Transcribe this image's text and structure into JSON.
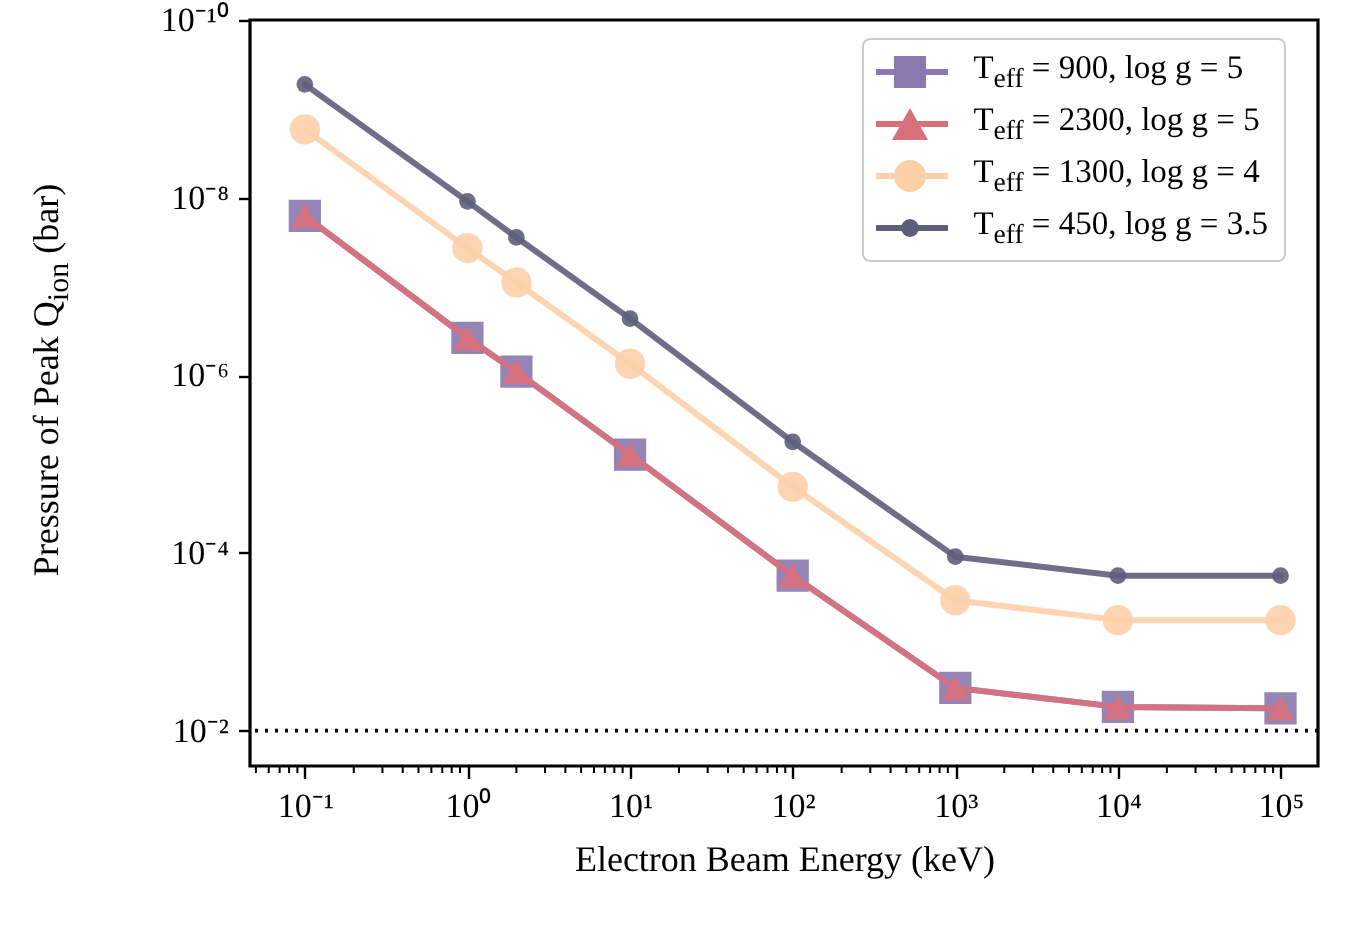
{
  "chart_data": {
    "type": "line",
    "xlabel": "Electron Beam Energy (keV)",
    "ylabel": "Pressure of Peak Q$_{ion}$ (bar)",
    "log": "xy",
    "grid": false,
    "legend": "top right",
    "x": [
      0.1,
      1,
      2,
      10,
      100,
      1000,
      10000,
      100000
    ],
    "xlim": [
      0.046,
      170000
    ],
    "ylim": [
      0.025,
      1e-10
    ],
    "xticks": [
      {
        "value": 0.1,
        "label": "10⁻¹"
      },
      {
        "value": 1,
        "label": "10⁰"
      },
      {
        "value": 10,
        "label": "10¹"
      },
      {
        "value": 100,
        "label": "10²"
      },
      {
        "value": 1000,
        "label": "10³"
      },
      {
        "value": 10000,
        "label": "10⁴"
      },
      {
        "value": 100000,
        "label": "10⁵"
      },
      {
        "value": 0.05,
        "label": null
      },
      {
        "value": 0.06,
        "label": null
      },
      {
        "value": 0.07,
        "label": null
      },
      {
        "value": 0.08,
        "label": null
      },
      {
        "value": 0.09,
        "label": null
      },
      {
        "value": 0.2,
        "label": null
      },
      {
        "value": 0.3,
        "label": null
      },
      {
        "value": 0.4,
        "label": null
      },
      {
        "value": 0.5,
        "label": null
      },
      {
        "value": 0.6,
        "label": null
      },
      {
        "value": 0.7,
        "label": null
      },
      {
        "value": 0.8,
        "label": null
      },
      {
        "value": 0.9,
        "label": null
      },
      {
        "value": 2,
        "label": null
      },
      {
        "value": 3,
        "label": null
      },
      {
        "value": 4,
        "label": null
      },
      {
        "value": 5,
        "label": null
      },
      {
        "value": 6,
        "label": null
      },
      {
        "value": 7,
        "label": null
      },
      {
        "value": 8,
        "label": null
      },
      {
        "value": 9,
        "label": null
      },
      {
        "value": 20,
        "label": null
      },
      {
        "value": 30,
        "label": null
      },
      {
        "value": 40,
        "label": null
      },
      {
        "value": 50,
        "label": null
      },
      {
        "value": 60,
        "label": null
      },
      {
        "value": 70,
        "label": null
      },
      {
        "value": 80,
        "label": null
      },
      {
        "value": 90,
        "label": null
      },
      {
        "value": 200,
        "label": null
      },
      {
        "value": 300,
        "label": null
      },
      {
        "value": 400,
        "label": null
      },
      {
        "value": 500,
        "label": null
      },
      {
        "value": 600,
        "label": null
      },
      {
        "value": 700,
        "label": null
      },
      {
        "value": 800,
        "label": null
      },
      {
        "value": 900,
        "label": null
      },
      {
        "value": 2000,
        "label": null
      },
      {
        "value": 3000,
        "label": null
      },
      {
        "value": 4000,
        "label": null
      },
      {
        "value": 5000,
        "label": null
      },
      {
        "value": 6000,
        "label": null
      },
      {
        "value": 7000,
        "label": null
      },
      {
        "value": 8000,
        "label": null
      },
      {
        "value": 9000,
        "label": null
      },
      {
        "value": 20000,
        "label": null
      },
      {
        "value": 30000,
        "label": null
      },
      {
        "value": 40000,
        "label": null
      },
      {
        "value": 50000,
        "label": null
      },
      {
        "value": 60000,
        "label": null
      },
      {
        "value": 70000,
        "label": null
      },
      {
        "value": 80000,
        "label": null
      },
      {
        "value": 90000,
        "label": null
      }
    ],
    "yticks": [
      {
        "value": 1e-10,
        "label": "10⁻¹⁰"
      },
      {
        "value": 1e-08,
        "label": "10⁻⁸"
      },
      {
        "value": 1e-06,
        "label": "10⁻⁶"
      },
      {
        "value": 0.0001,
        "label": "10⁻⁴"
      },
      {
        "value": 0.01,
        "label": "10⁻²"
      }
    ],
    "ref_lines": [
      {
        "axis": "y",
        "value": 0.01,
        "color": "#000000",
        "line_style": "dotted"
      }
    ],
    "series": [
      {
        "name": "T$_{eff}$ = 900, log g = 5",
        "color": "#8a78ae",
        "marker": "square",
        "values": [
          1.6e-08,
          3.8e-07,
          9.1e-07,
          7.8e-06,
          0.00018,
          0.0033,
          0.0054,
          0.0056
        ]
      },
      {
        "name": "T$_{eff}$ = 2300, log g = 5",
        "color": "#d8707c",
        "marker": "triangle",
        "values": [
          1.6e-08,
          3.8e-07,
          9.1e-07,
          7.8e-06,
          0.00018,
          0.0033,
          0.0054,
          0.0056
        ]
      },
      {
        "name": "T$_{eff}$ = 1300, log g = 4",
        "color": "#fdd0aa",
        "marker": "circle",
        "values": [
          1.7e-09,
          3.7e-08,
          9e-08,
          7.4e-07,
          1.8e-05,
          0.00034,
          0.00057,
          0.00057
        ]
      },
      {
        "name": "T$_{eff}$ = 450, log g = 3.5",
        "color": "#5f5d7a",
        "marker": "circle",
        "values": [
          5.3e-10,
          1.1e-08,
          2.8e-08,
          2.3e-07,
          5.6e-06,
          0.00011,
          0.00018,
          0.00018
        ]
      }
    ]
  }
}
